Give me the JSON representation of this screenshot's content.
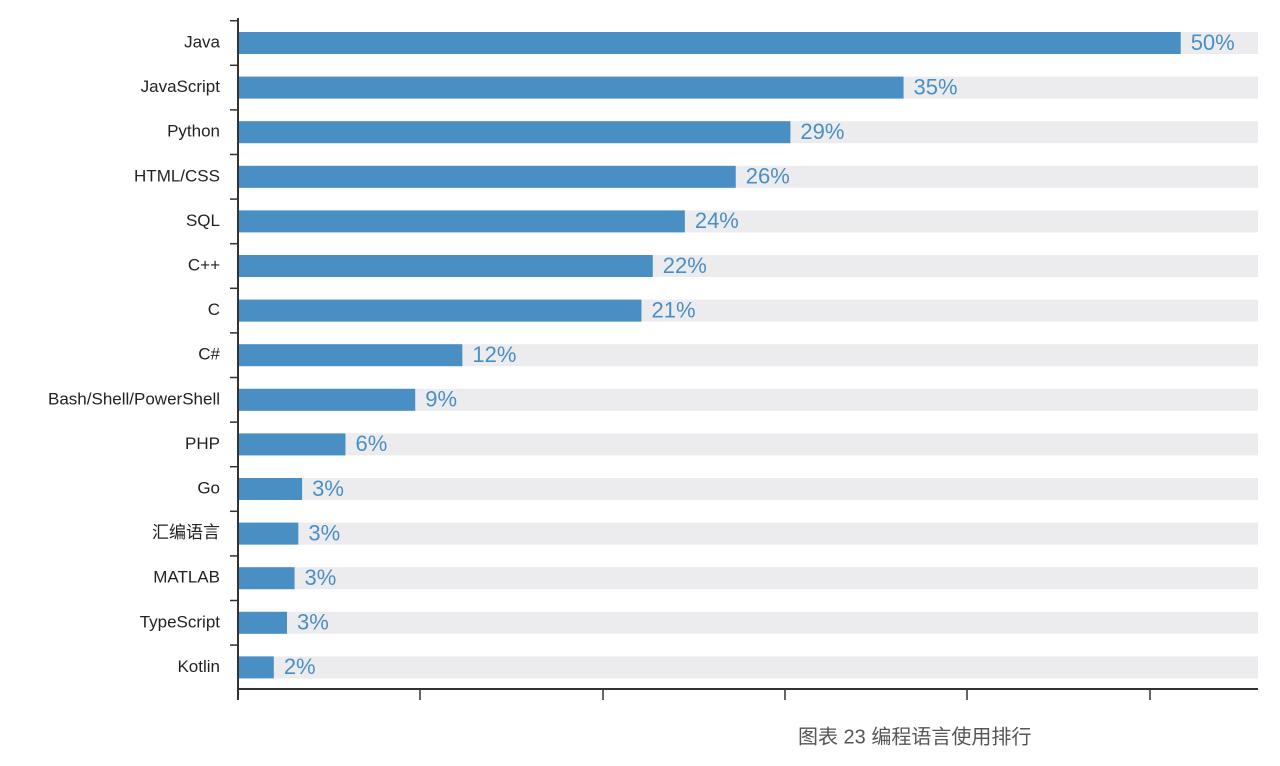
{
  "chart_data": {
    "type": "bar",
    "orientation": "horizontal",
    "title": "图表 23 编程语言使用排行",
    "categories": [
      "Java",
      "JavaScript",
      "Python",
      "HTML/CSS",
      "SQL",
      "C++",
      "C",
      "C#",
      "Bash/Shell/PowerShell",
      "PHP",
      "Go",
      "汇编语言",
      "MATLAB",
      "TypeScript",
      "Kotlin"
    ],
    "values": [
      50,
      35.3,
      29.3,
      26.4,
      23.7,
      22.0,
      21.4,
      11.9,
      9.4,
      5.7,
      3.4,
      3.2,
      3.0,
      2.6,
      1.9
    ],
    "value_labels": [
      "50%",
      "35%",
      "29%",
      "26%",
      "24%",
      "22%",
      "21%",
      "12%",
      "9%",
      "6%",
      "3%",
      "3%",
      "3%",
      "3%",
      "2%"
    ],
    "color": "#4a8fc4",
    "track_color": "#ececee",
    "xlim": [
      0,
      54.1
    ]
  }
}
